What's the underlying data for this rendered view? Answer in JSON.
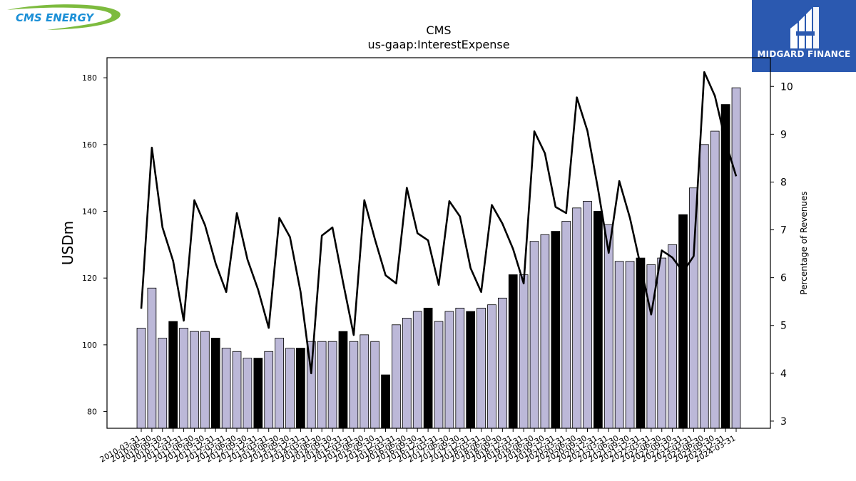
{
  "logos": {
    "left": {
      "text": "CMS ENERGY",
      "colors": {
        "text": "#1a8fd6",
        "swoosh": "#7dbb3e"
      }
    },
    "right": {
      "text": "MIDGARD FINANCE",
      "background": "#2b59b0"
    }
  },
  "chart_data": {
    "type": "bar",
    "title": "CMS",
    "subtitle": "us-gaap:InterestExpense",
    "ylabel": "USDm",
    "y2label": "Percentage of Revenues",
    "ylim": [
      75,
      186
    ],
    "y2lim": [
      2.85,
      10.6
    ],
    "yticks": [
      80,
      100,
      120,
      140,
      160,
      180
    ],
    "y2ticks": [
      3,
      4,
      5,
      6,
      7,
      8,
      9,
      10
    ],
    "grid": false,
    "colors": {
      "bar": "#bcb8d8",
      "bar_highlight": "#000000",
      "line": "#000000"
    },
    "categories": [
      "2010-03-31",
      "2010-06-30",
      "2010-09-30",
      "2010-12-31",
      "2011-03-31",
      "2011-06-30",
      "2011-09-30",
      "2011-12-31",
      "2012-03-31",
      "2012-06-30",
      "2012-09-30",
      "2012-12-31",
      "2013-03-31",
      "2013-06-30",
      "2013-09-30",
      "2013-12-31",
      "2014-03-31",
      "2014-06-30",
      "2014-09-30",
      "2014-12-31",
      "2015-03-31",
      "2015-06-30",
      "2015-09-30",
      "2015-12-31",
      "2016-03-31",
      "2016-06-30",
      "2016-09-30",
      "2016-12-31",
      "2017-03-31",
      "2017-06-30",
      "2017-09-30",
      "2017-12-31",
      "2018-03-31",
      "2018-06-30",
      "2018-09-30",
      "2018-12-31",
      "2019-03-31",
      "2019-06-30",
      "2019-09-30",
      "2019-12-31",
      "2020-03-31",
      "2020-06-30",
      "2020-09-30",
      "2020-12-31",
      "2021-03-31",
      "2021-06-30",
      "2021-09-30",
      "2021-12-31",
      "2022-03-31",
      "2022-06-30",
      "2022-09-30",
      "2022-12-31",
      "2023-03-31",
      "2023-06-30",
      "2023-09-30",
      "2023-12-31",
      "2024-03-31"
    ],
    "series": [
      {
        "type": "bar",
        "values": [
          105,
          117,
          102,
          107,
          105,
          104,
          104,
          102,
          99,
          98,
          96,
          96,
          98,
          102,
          99,
          99,
          101,
          101,
          101,
          104,
          101,
          103,
          101,
          91,
          106,
          108,
          110,
          111,
          107,
          110,
          111,
          110,
          111,
          112,
          114,
          121,
          121,
          131,
          133,
          134,
          137,
          141,
          143,
          140,
          136,
          125,
          125,
          126,
          124,
          126,
          130,
          139,
          147,
          160,
          164,
          172,
          177
        ],
        "highlight": [
          false,
          false,
          false,
          true,
          false,
          false,
          false,
          true,
          false,
          false,
          false,
          true,
          false,
          false,
          false,
          true,
          false,
          false,
          false,
          true,
          false,
          false,
          false,
          true,
          false,
          false,
          false,
          true,
          false,
          false,
          false,
          true,
          false,
          false,
          false,
          true,
          false,
          false,
          false,
          true,
          false,
          false,
          false,
          true,
          false,
          false,
          false,
          true,
          false,
          false,
          false,
          true,
          false,
          false,
          false,
          true,
          false
        ]
      },
      {
        "type": "line",
        "axis": "right",
        "values": [
          5.35,
          8.72,
          7.05,
          6.35,
          5.1,
          7.62,
          7.1,
          6.3,
          5.7,
          7.35,
          6.38,
          5.75,
          4.95,
          7.25,
          6.85,
          5.7,
          4.0,
          6.88,
          7.05,
          5.9,
          4.8,
          7.62,
          6.8,
          6.05,
          5.88,
          7.88,
          6.93,
          6.78,
          5.85,
          7.6,
          7.28,
          6.2,
          5.7,
          7.52,
          7.13,
          6.6,
          5.88,
          9.06,
          8.6,
          7.48,
          7.35,
          9.77,
          9.07,
          7.85,
          6.52,
          8.02,
          7.25,
          6.25,
          5.23,
          6.57,
          6.42,
          6.12,
          6.45,
          10.3,
          9.8,
          8.85,
          8.12
        ]
      }
    ]
  }
}
